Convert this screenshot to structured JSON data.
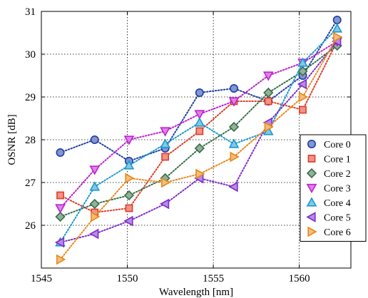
{
  "chart_data": {
    "type": "scatter",
    "title": "",
    "xlabel": "Wavelength [nm]",
    "ylabel": "OSNR [dB]",
    "xlim": [
      1545,
      1563
    ],
    "ylim": [
      25,
      31
    ],
    "xticks": [
      1545,
      1550,
      1555,
      1560
    ],
    "yticks": [
      26,
      27,
      28,
      29,
      30,
      31
    ],
    "grid": true,
    "legend_position": "right",
    "series": [
      {
        "name": "Core 0",
        "color": "#1f3ea8",
        "marker": "circle",
        "x": [
          1546.1,
          1548.1,
          1550.1,
          1552.2,
          1554.2,
          1556.2,
          1558.2,
          1560.2,
          1562.2
        ],
        "y": [
          27.7,
          28.0,
          27.5,
          27.8,
          29.1,
          29.2,
          28.9,
          29.5,
          30.8
        ]
      },
      {
        "name": "Core 1",
        "color": "#e03c28",
        "marker": "square",
        "x": [
          1546.1,
          1548.1,
          1550.1,
          1552.2,
          1554.2,
          1556.2,
          1558.2,
          1560.2,
          1562.2
        ],
        "y": [
          26.7,
          26.3,
          26.4,
          27.6,
          28.2,
          28.9,
          28.9,
          28.7,
          30.3
        ]
      },
      {
        "name": "Core 2",
        "color": "#3a7048",
        "marker": "diamond",
        "x": [
          1546.1,
          1548.1,
          1550.1,
          1552.2,
          1554.2,
          1556.2,
          1558.2,
          1560.2,
          1562.2
        ],
        "y": [
          26.2,
          26.5,
          26.7,
          27.1,
          27.8,
          28.3,
          29.1,
          29.6,
          30.2
        ]
      },
      {
        "name": "Core 3",
        "color": "#c020d0",
        "marker": "triangle-down",
        "x": [
          1546.1,
          1548.1,
          1550.1,
          1552.2,
          1554.2,
          1556.2,
          1558.2,
          1560.2,
          1562.2
        ],
        "y": [
          26.4,
          27.3,
          28.0,
          28.2,
          28.6,
          28.9,
          29.5,
          29.8,
          30.3
        ]
      },
      {
        "name": "Core 4",
        "color": "#1b9ad0",
        "marker": "triangle-up",
        "x": [
          1546.1,
          1548.1,
          1550.1,
          1552.2,
          1554.2,
          1556.2,
          1558.2,
          1560.2,
          1562.2
        ],
        "y": [
          25.6,
          26.9,
          27.4,
          27.9,
          28.4,
          27.9,
          28.2,
          29.8,
          30.6
        ]
      },
      {
        "name": "Core 5",
        "color": "#7f2ccc",
        "marker": "triangle-left",
        "x": [
          1546.1,
          1548.1,
          1550.1,
          1552.2,
          1554.2,
          1556.2,
          1558.2,
          1560.2,
          1562.2
        ],
        "y": [
          25.6,
          25.8,
          26.1,
          26.5,
          27.1,
          26.9,
          28.4,
          29.3,
          30.3
        ]
      },
      {
        "name": "Core 6",
        "color": "#e8891a",
        "marker": "triangle-right",
        "x": [
          1546.1,
          1548.1,
          1550.1,
          1552.2,
          1554.2,
          1556.2,
          1558.2,
          1560.2,
          1562.2
        ],
        "y": [
          25.2,
          26.2,
          27.1,
          27.0,
          27.2,
          27.6,
          28.3,
          29.0,
          30.4
        ]
      }
    ]
  }
}
